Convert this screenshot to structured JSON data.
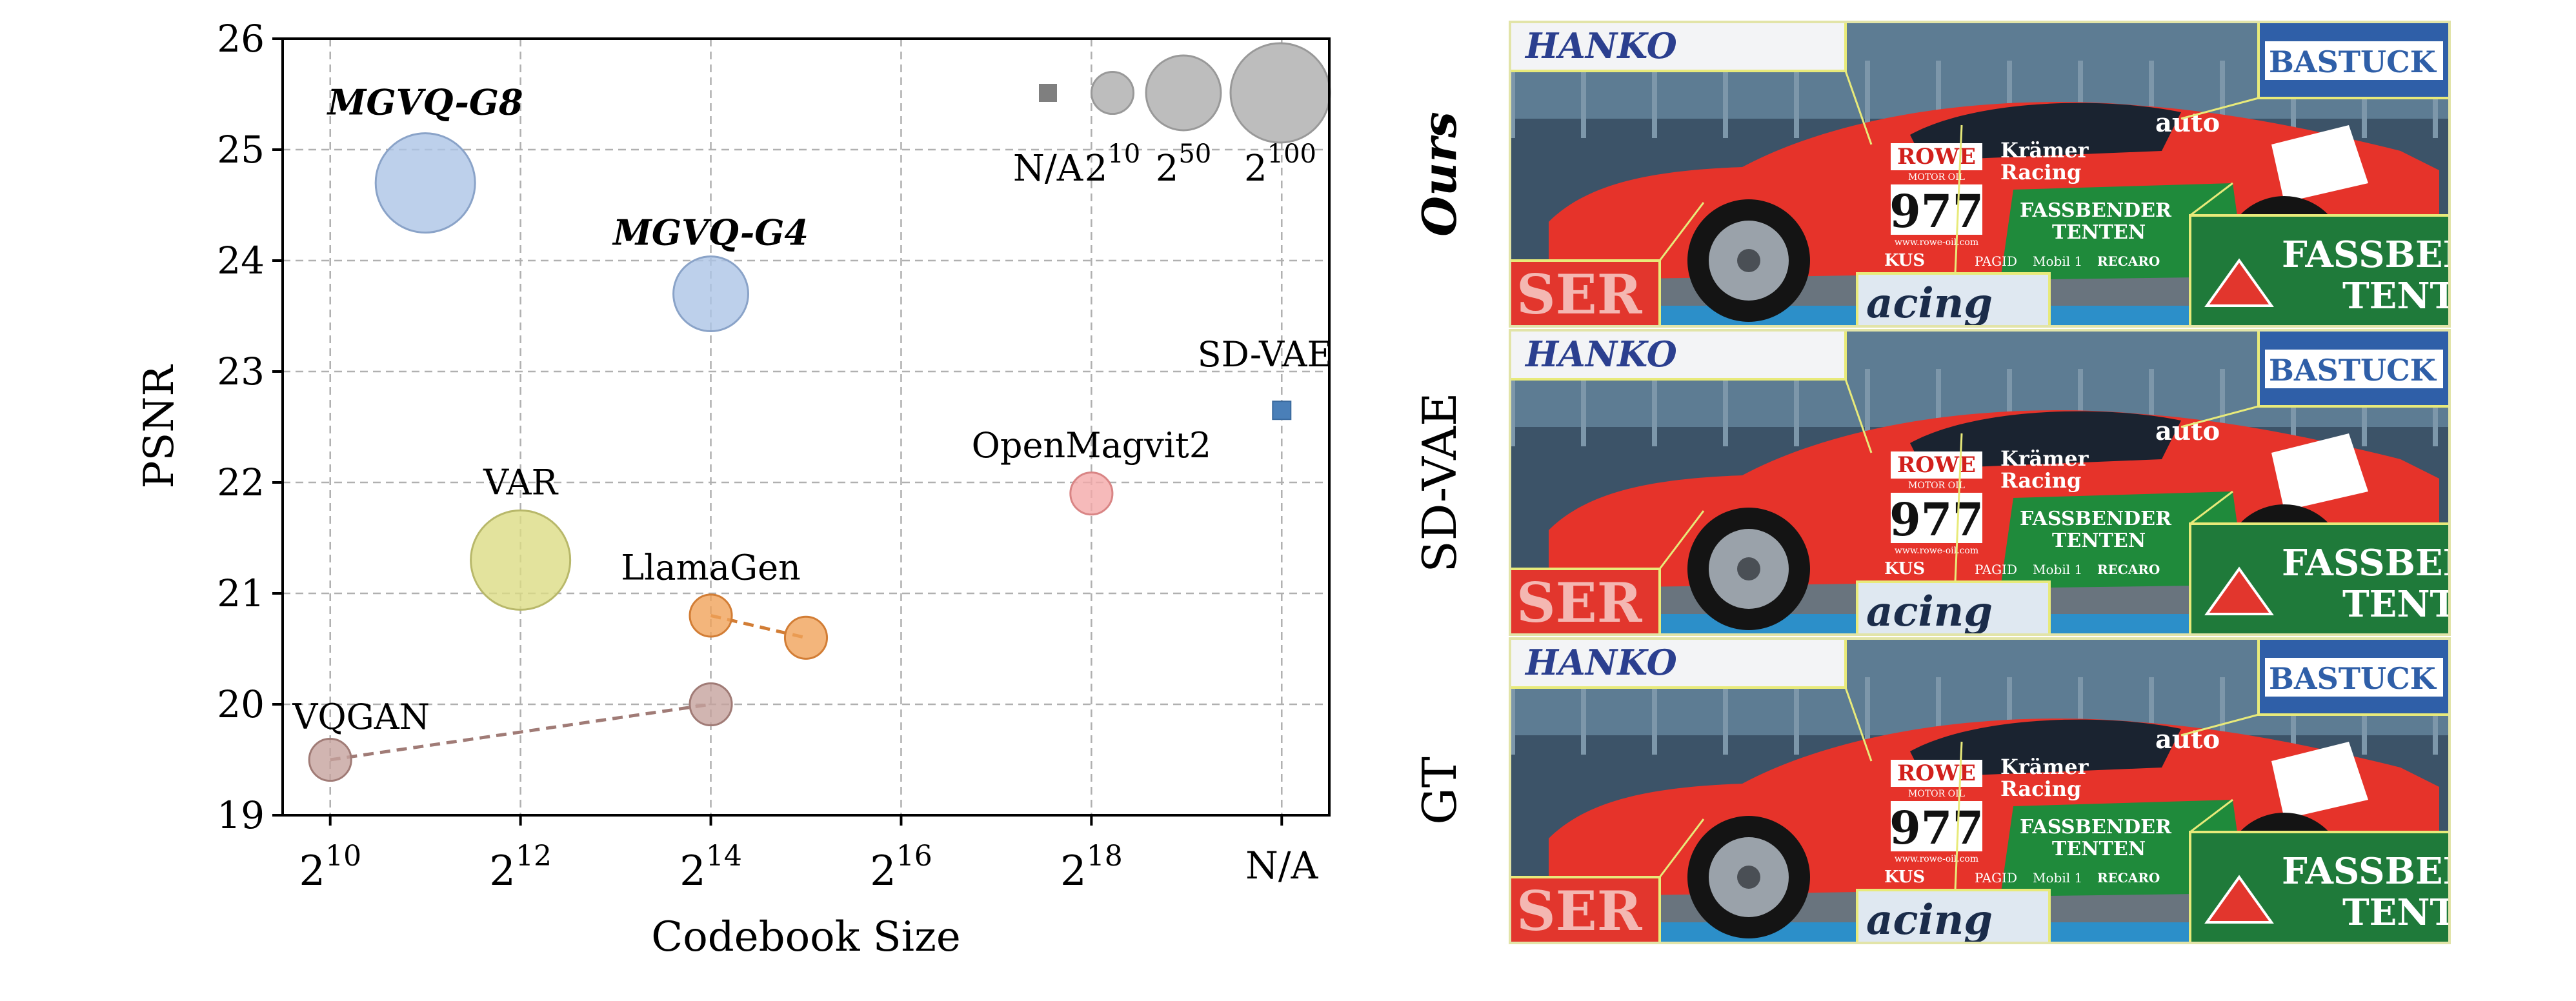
{
  "chart_data": {
    "type": "scatter",
    "xlabel": "Codebook Size",
    "ylabel": "PSNR",
    "ylim": [
      19,
      26
    ],
    "yticks": [
      19,
      20,
      21,
      22,
      23,
      24,
      25,
      26
    ],
    "x_axis": {
      "ticks": [
        {
          "pos": 10,
          "base": "2",
          "exp": "10"
        },
        {
          "pos": 12,
          "base": "2",
          "exp": "12"
        },
        {
          "pos": 14,
          "base": "2",
          "exp": "14"
        },
        {
          "pos": 16,
          "base": "2",
          "exp": "16"
        },
        {
          "pos": 18,
          "base": "2",
          "exp": "18"
        },
        {
          "pos": 20,
          "base": "N/A",
          "exp": ""
        }
      ],
      "range": [
        9.5,
        20.5
      ]
    },
    "grid": true,
    "series": [
      {
        "name": "MGVQ-G8",
        "color": "#adc4e6",
        "edge": "#8aa3c8",
        "italic_bold": true,
        "points": [
          {
            "x": 11,
            "y": 24.7,
            "size": 100
          }
        ]
      },
      {
        "name": "MGVQ-G4",
        "color": "#adc4e6",
        "edge": "#8aa3c8",
        "italic_bold": true,
        "points": [
          {
            "x": 14,
            "y": 23.7,
            "size": 50
          }
        ]
      },
      {
        "name": "VAR",
        "color": "#dcdc84",
        "edge": "#b8b86a",
        "points": [
          {
            "x": 12,
            "y": 21.3,
            "size": 100
          }
        ]
      },
      {
        "name": "LlamaGen",
        "color": "#f0a25a",
        "edge": "#d27d35",
        "line": true,
        "points": [
          {
            "x": 14,
            "y": 20.8,
            "size": 10
          },
          {
            "x": 15,
            "y": 20.6,
            "size": 10
          }
        ]
      },
      {
        "name": "VQGAN",
        "color": "#c6a39e",
        "edge": "#a07b76",
        "line": true,
        "points": [
          {
            "x": 10,
            "y": 19.5,
            "size": 10
          },
          {
            "x": 14,
            "y": 20.0,
            "size": 10
          }
        ]
      },
      {
        "name": "OpenMagvit2",
        "color": "#f4a9a9",
        "edge": "#d98585",
        "points": [
          {
            "x": 18,
            "y": 21.9,
            "size": 10
          }
        ]
      },
      {
        "name": "SD-VAE",
        "color": "#4a7fb8",
        "edge": "#3a6a9e",
        "marker": "square",
        "points": [
          {
            "x": 20,
            "y": 22.65,
            "size": 0
          }
        ]
      }
    ],
    "size_legend": {
      "placement": "top-right",
      "entries": [
        {
          "label_base": "N/A",
          "label_exp": "",
          "size": 0,
          "marker": "square"
        },
        {
          "label_base": "2",
          "label_exp": "10",
          "size": 10
        },
        {
          "label_base": "2",
          "label_exp": "50",
          "size": 50
        },
        {
          "label_base": "2",
          "label_exp": "100",
          "size": 100
        }
      ]
    }
  },
  "comparison": {
    "rows": [
      {
        "label": "Ours",
        "italic_bold": true
      },
      {
        "label": "SD-VAE",
        "italic_bold": false
      },
      {
        "label": "GT",
        "italic_bold": false
      }
    ],
    "car": {
      "sponsor_top": "Hanko",
      "brand": "ROWE",
      "brand_sub": "MOTOR OIL",
      "number": "977",
      "team_1": "Krämer",
      "team_2": "Racing",
      "side_1": "FASSBENDER",
      "side_2": "TENTEN",
      "bottom_left": "KUS",
      "bottom_mid": "PAGID",
      "bottom_mid2": "Mobil 1",
      "bottom_right": "RECARO",
      "url": "www.rowe-oil.com",
      "top_right": "BASTUCK",
      "nose_mark": "SER",
      "wing_mark": "acing",
      "door_logo": "auto"
    }
  }
}
